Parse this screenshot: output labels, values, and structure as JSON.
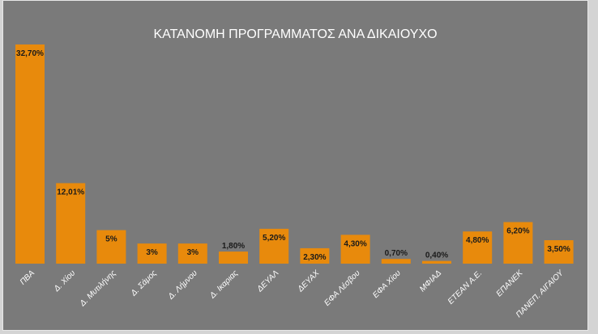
{
  "chart_data": {
    "type": "bar",
    "title": "ΚΑΤΑΝΟΜΗ ΠΡΟΓΡΑΜΜΑΤΟΣ ΑΝΑ ΔΙΚΑΙΟΥΧΟ",
    "categories": [
      "ΠΒΑ",
      "Δ. Χίου",
      "Δ. Μυτιλήνης",
      "Δ. Σάμος",
      "Δ. Λήμνου",
      "Δ. Ικαριας",
      "ΔΕΥΑΛ",
      "ΔΕΥΑΧ",
      "ΕΦΑ Λέσβου",
      "ΕΦΑ Χίου",
      "ΜΦΙΑΔ",
      "ΕΤΕΑΝ Α.Ε.",
      "ΕΠΑΝΕΚ",
      "ΠΑΝΕΠ. ΑΙΓΑΙΟΥ"
    ],
    "values": [
      32.7,
      12.01,
      5,
      3,
      3,
      1.8,
      5.2,
      2.3,
      4.3,
      0.7,
      0.4,
      4.8,
      6.2,
      3.5
    ],
    "data_labels": [
      "32,70%",
      "12,01%",
      "5%",
      "3%",
      "3%",
      "1,80%",
      "5,20%",
      "2,30%",
      "4,30%",
      "0,70%",
      "0,40%",
      "4,80%",
      "6,20%",
      "3,50%"
    ],
    "xlabel": "",
    "ylabel": "",
    "ylim": [
      0,
      32.7
    ],
    "grid": false,
    "legend": "none",
    "colors": {
      "bar": "#e88a0c",
      "background": "#7a7a7a",
      "label": "#1a1a1a",
      "title": "#ffffff"
    }
  }
}
